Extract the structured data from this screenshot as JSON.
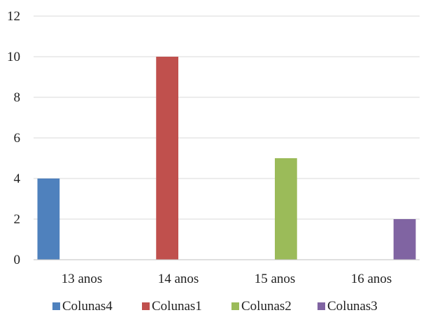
{
  "chart_data": {
    "type": "bar",
    "title": "",
    "xlabel": "",
    "ylabel": "",
    "categories": [
      "13 anos",
      "14 anos",
      "15 anos",
      "16 anos"
    ],
    "series": [
      {
        "name": "Colunas4",
        "color": "#4f81bd",
        "values": [
          4,
          0,
          0,
          0
        ]
      },
      {
        "name": "Colunas1",
        "color": "#c0504d",
        "values": [
          0,
          10,
          0,
          0
        ]
      },
      {
        "name": "Colunas2",
        "color": "#9bbb59",
        "values": [
          0,
          0,
          5,
          0
        ]
      },
      {
        "name": "Colunas3",
        "color": "#8064a2",
        "values": [
          0,
          0,
          0,
          2
        ]
      }
    ],
    "ylim": [
      0,
      12
    ],
    "yticks": [
      "0",
      "2",
      "4",
      "6",
      "8",
      "10",
      "12"
    ],
    "grid": true,
    "legend_position": "bottom"
  }
}
